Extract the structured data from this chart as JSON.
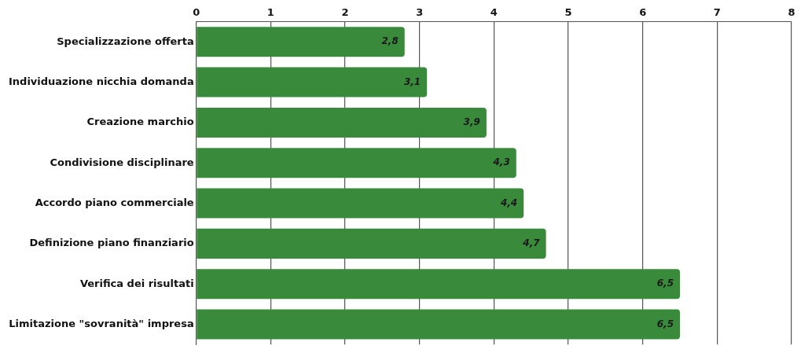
{
  "chart_data": {
    "type": "bar",
    "orientation": "horizontal",
    "categories": [
      "Specializzazione offerta",
      "Individuazione nicchia domanda",
      "Creazione marchio",
      "Condivisione disciplinare",
      "Accordo piano commerciale",
      "Definizione piano finanziario",
      "Verifica dei risultati",
      "Limitazione \"sovranità\" impresa"
    ],
    "values": [
      2.8,
      3.1,
      3.9,
      4.3,
      4.4,
      4.7,
      6.5,
      6.5
    ],
    "value_labels": [
      "2,8",
      "3,1",
      "3,9",
      "4,3",
      "4,4",
      "4,7",
      "6,5",
      "6,5"
    ],
    "color": "#3a8a3c",
    "xlim": [
      0,
      8
    ],
    "xticks": [
      0,
      1,
      2,
      3,
      4,
      5,
      6,
      7,
      8
    ],
    "grid": "x"
  }
}
